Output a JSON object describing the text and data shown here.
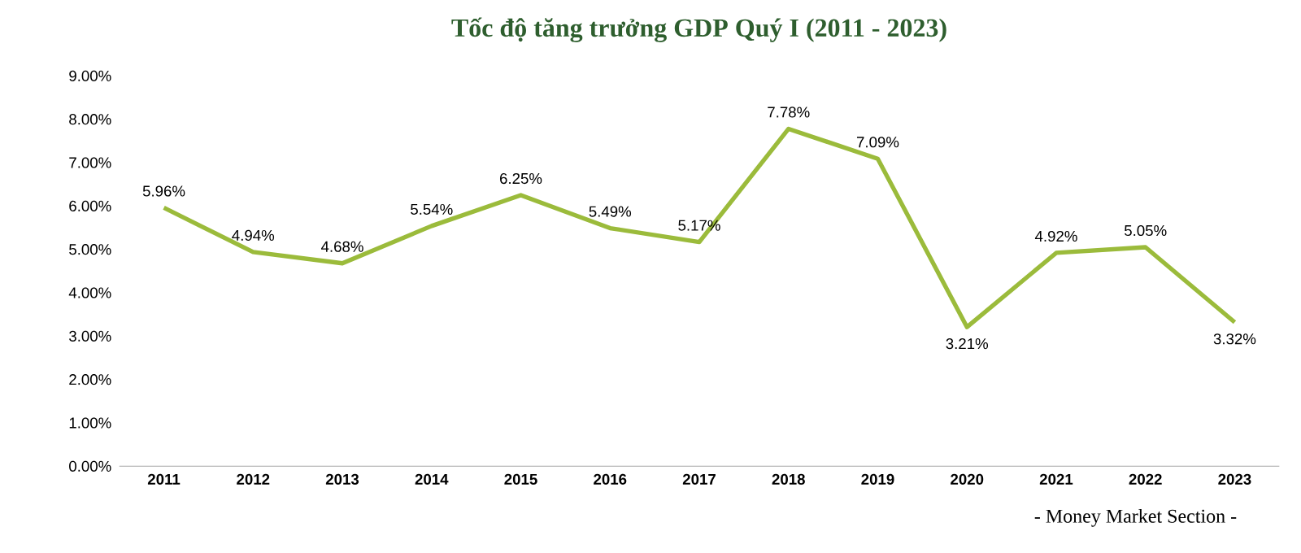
{
  "chart_data": {
    "type": "line",
    "title": "Tốc độ tăng trưởng GDP Quý I (2011 - 2023)",
    "categories": [
      "2011",
      "2012",
      "2013",
      "2014",
      "2015",
      "2016",
      "2017",
      "2018",
      "2019",
      "2020",
      "2021",
      "2022",
      "2023"
    ],
    "values": [
      5.96,
      4.94,
      4.68,
      5.54,
      6.25,
      5.49,
      5.17,
      7.78,
      7.09,
      3.21,
      4.92,
      5.05,
      3.32
    ],
    "value_labels": [
      "5.96%",
      "4.94%",
      "4.68%",
      "5.54%",
      "6.25%",
      "5.49%",
      "5.17%",
      "7.78%",
      "7.09%",
      "3.21%",
      "4.92%",
      "5.05%",
      "3.32%"
    ],
    "color": "#9bbb3b",
    "ylim": [
      0,
      9
    ],
    "yticks": [
      {
        "value": 0,
        "label": "0.00%"
      },
      {
        "value": 1,
        "label": "1.00%"
      },
      {
        "value": 2,
        "label": "2.00%"
      },
      {
        "value": 3,
        "label": "3.00%"
      },
      {
        "value": 4,
        "label": "4.00%"
      },
      {
        "value": 5,
        "label": "5.00%"
      },
      {
        "value": 6,
        "label": "6.00%"
      },
      {
        "value": 7,
        "label": "7.00%"
      },
      {
        "value": 8,
        "label": "8.00%"
      },
      {
        "value": 9,
        "label": "9.00%"
      }
    ],
    "annotations": [
      "- Money Market Section -"
    ]
  }
}
